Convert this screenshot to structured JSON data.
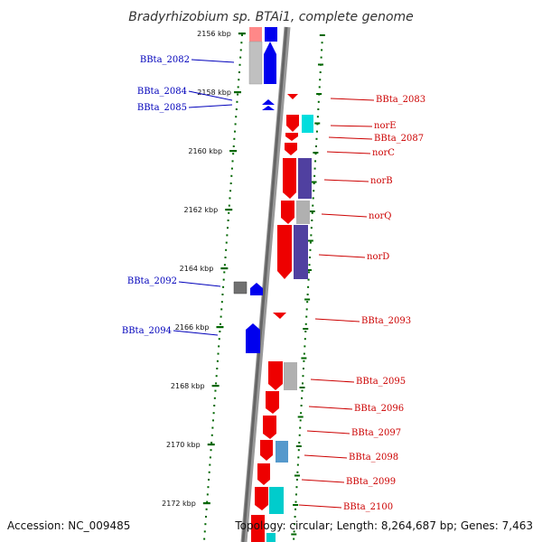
{
  "title": "Bradyrhizobium sp. BTAi1, complete genome",
  "accession": "Accession: NC_009485",
  "topology": "Topology: circular; Length: 8,264,687 bp; Genes: 7,463",
  "colors": {
    "forward_label": "#0000bb",
    "reverse_label": "#cc0000",
    "forward_gene": "#0000ff",
    "reverse_gene": "#ff0000",
    "tick": "#006600",
    "backbone": "#777777"
  },
  "ticks": [
    {
      "label": "2156 kbp",
      "kbp": 2156
    },
    {
      "label": "2158 kbp",
      "kbp": 2158
    },
    {
      "label": "2160 kbp",
      "kbp": 2160
    },
    {
      "label": "2162 kbp",
      "kbp": 2162
    },
    {
      "label": "2164 kbp",
      "kbp": 2164
    },
    {
      "label": "2166 kbp",
      "kbp": 2166
    },
    {
      "label": "2168 kbp",
      "kbp": 2168
    },
    {
      "label": "2170 kbp",
      "kbp": 2170
    },
    {
      "label": "2172 kbp",
      "kbp": 2172
    }
  ],
  "forward_labels": [
    "BBta_2082",
    "BBta_2084",
    "BBta_2085",
    "BBta_2092",
    "BBta_2094"
  ],
  "reverse_labels": [
    "BBta_2083",
    "norE",
    "BBta_2087",
    "norC",
    "norB",
    "norQ",
    "norD",
    "BBta_2093",
    "BBta_2095",
    "BBta_2096",
    "BBta_2097",
    "BBta_2098",
    "BBta_2099",
    "BBta_2100"
  ]
}
